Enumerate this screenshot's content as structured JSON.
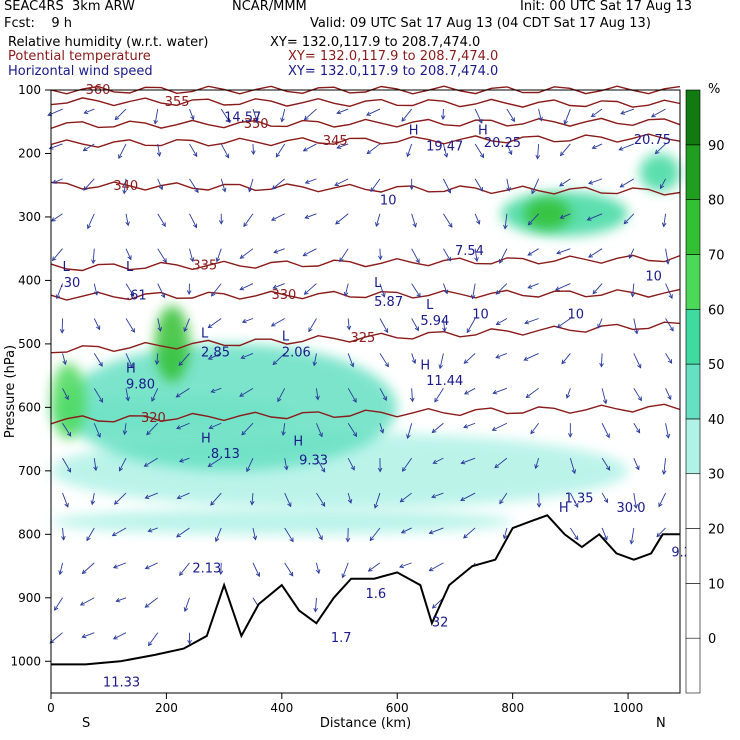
{
  "header": {
    "model": "SEAC4RS  3km ARW",
    "org": "NCAR/MMM",
    "init": "Init: 00 UTC Sat 17 Aug 13",
    "fcst": "Fcst:    9 h",
    "valid": "Valid: 09 UTC Sat 17 Aug 13 (04 CDT Sat 17 Aug 13)",
    "fields": [
      {
        "name": "Relative humidity (w.r.t. water)",
        "xy": "XY= 132.0,117.9 to 208.7,474.0",
        "color": "#000000"
      },
      {
        "name": "Potential temperature",
        "xy": "XY= 132.0,117.9 to 208.7,474.0",
        "color": "#8b1a1a"
      },
      {
        "name": "Horizontal wind speed",
        "xy": "XY= 132.0,117.9 to 208.7,474.0",
        "color": "#1a1a8b"
      }
    ]
  },
  "chart_data": {
    "type": "heatmap",
    "xlabel": "Distance (km)",
    "ylabel": "Pressure (hPa)",
    "x_ticks": [
      0,
      200,
      400,
      600,
      800,
      1000
    ],
    "xlim": [
      0,
      1090
    ],
    "y_ticks": [
      100,
      200,
      300,
      400,
      500,
      600,
      700,
      800,
      900,
      1000
    ],
    "ylim": [
      100,
      1050
    ],
    "x_end_labels": {
      "left": "S",
      "right": "N"
    },
    "colorbar": {
      "unit": "%",
      "ticks": [
        0,
        10,
        20,
        30,
        40,
        50,
        60,
        70,
        80,
        90
      ],
      "colors": [
        "#ffffff",
        "#ffffff",
        "#ffffff",
        "#ffffff",
        "#b0f2e6",
        "#66e0c2",
        "#40d9a0",
        "#4cd95a",
        "#33c033",
        "#1f9e1f",
        "#117a11"
      ]
    },
    "rh_regions": [
      {
        "x": [
          0,
          420
        ],
        "p": [
          580,
          640
        ],
        "level": 4
      },
      {
        "x": [
          0,
          1000
        ],
        "p": [
          640,
          760
        ],
        "level": 4
      },
      {
        "x": [
          0,
          800
        ],
        "p": [
          760,
          800
        ],
        "level": 4
      },
      {
        "x": [
          20,
          600
        ],
        "p": [
          500,
          700
        ],
        "level": 5
      },
      {
        "x": [
          0,
          60
        ],
        "p": [
          530,
          650
        ],
        "level": 7
      },
      {
        "x": [
          180,
          240
        ],
        "p": [
          440,
          560
        ],
        "level": 8
      },
      {
        "x": [
          780,
          1000
        ],
        "p": [
          260,
          330
        ],
        "level": 6
      },
      {
        "x": [
          820,
          900
        ],
        "p": [
          270,
          320
        ],
        "level": 8
      },
      {
        "x": [
          1020,
          1090
        ],
        "p": [
          200,
          260
        ],
        "level": 6
      }
    ],
    "theta_contours": [
      {
        "label": "360",
        "p": [
          100,
          100
        ]
      },
      {
        "label": "355",
        "p": [
          118,
          122
        ]
      },
      {
        "label": "350",
        "p": [
          155,
          150
        ]
      },
      {
        "label": "345",
        "p": [
          185,
          175
        ]
      },
      {
        "label": "340",
        "p": [
          250,
          260
        ]
      },
      {
        "label": "335",
        "p": [
          380,
          365
        ]
      },
      {
        "label": "330",
        "p": [
          425,
          420
        ]
      },
      {
        "label": "325",
        "p": [
          510,
          470
        ]
      },
      {
        "label": "320",
        "p": [
          620,
          600
        ]
      }
    ],
    "wind_labels": [
      {
        "text": "14.57",
        "x": 300,
        "p": 150
      },
      {
        "text": "19.47",
        "x": 650,
        "p": 195
      },
      {
        "text": "20.25",
        "x": 750,
        "p": 190
      },
      {
        "text": "20.75",
        "x": 1010,
        "p": 185
      },
      {
        "text": "10",
        "x": 570,
        "p": 280
      },
      {
        "text": "7.54",
        "x": 700,
        "p": 360
      },
      {
        "text": "5.87",
        "x": 560,
        "p": 440
      },
      {
        "text": "5.94",
        "x": 640,
        "p": 470
      },
      {
        "text": "10",
        "x": 730,
        "p": 460
      },
      {
        "text": "10",
        "x": 895,
        "p": 460
      },
      {
        "text": "10",
        "x": 1030,
        "p": 400
      },
      {
        "text": ".61",
        "x": 130,
        "p": 430
      },
      {
        "text": ".30",
        "x": 15,
        "p": 410
      },
      {
        "text": "2.85",
        "x": 260,
        "p": 520
      },
      {
        "text": "2.06",
        "x": 400,
        "p": 520
      },
      {
        "text": "9.80",
        "x": 130,
        "p": 570
      },
      {
        "text": "11.44",
        "x": 650,
        "p": 565
      },
      {
        "text": ".8.13",
        "x": 270,
        "p": 680
      },
      {
        "text": "9.33",
        "x": 430,
        "p": 690
      },
      {
        "text": "1.35",
        "x": 890,
        "p": 750
      },
      {
        "text": "30.0",
        "x": 980,
        "p": 765
      },
      {
        "text": "2.13",
        "x": 245,
        "p": 860
      },
      {
        "text": "1.6",
        "x": 545,
        "p": 900
      },
      {
        "text": "32",
        "x": 660,
        "p": 945
      },
      {
        "text": "1.7",
        "x": 485,
        "p": 970
      },
      {
        "text": "11.33",
        "x": 90,
        "p": 1040
      },
      {
        "text": "9.2",
        "x": 1075,
        "p": 835
      }
    ],
    "hl_marks": [
      {
        "text": "H",
        "x": 620,
        "p": 170
      },
      {
        "text": "H",
        "x": 740,
        "p": 170
      },
      {
        "text": "L",
        "x": 20,
        "p": 385
      },
      {
        "text": "L",
        "x": 130,
        "p": 385
      },
      {
        "text": "L",
        "x": 560,
        "p": 410
      },
      {
        "text": "L",
        "x": 650,
        "p": 445
      },
      {
        "text": "L",
        "x": 260,
        "p": 490
      },
      {
        "text": "L",
        "x": 400,
        "p": 495
      },
      {
        "text": "H",
        "x": 130,
        "p": 545
      },
      {
        "text": "H",
        "x": 640,
        "p": 540
      },
      {
        "text": "H",
        "x": 260,
        "p": 655
      },
      {
        "text": "H",
        "x": 420,
        "p": 660
      },
      {
        "text": "H",
        "x": 880,
        "p": 765
      }
    ],
    "terrain": {
      "x": [
        0,
        60,
        120,
        180,
        230,
        270,
        300,
        330,
        360,
        400,
        430,
        460,
        490,
        520,
        560,
        600,
        640,
        660,
        690,
        730,
        770,
        800,
        830,
        860,
        890,
        920,
        950,
        980,
        1010,
        1040,
        1060,
        1090
      ],
      "p": [
        1005,
        1005,
        1000,
        990,
        980,
        960,
        880,
        960,
        910,
        880,
        920,
        940,
        900,
        870,
        870,
        860,
        880,
        940,
        880,
        850,
        840,
        790,
        780,
        770,
        800,
        820,
        800,
        830,
        840,
        830,
        800,
        800
      ]
    }
  }
}
